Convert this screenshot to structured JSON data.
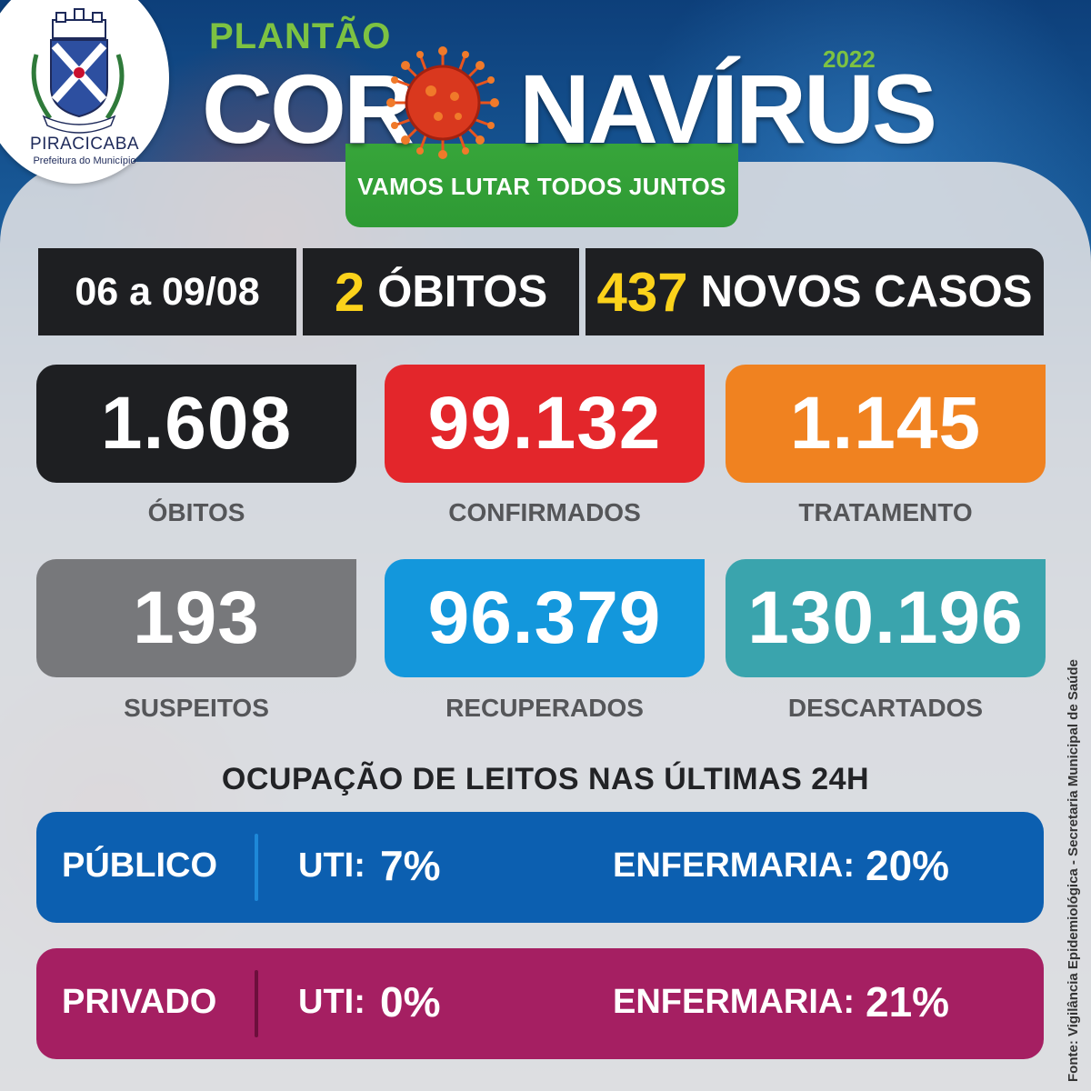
{
  "header": {
    "city": "PIRACICABA",
    "city_subtitle": "Prefeitura do Município",
    "kicker": "PLANTÃO",
    "title_left": "COR",
    "title_right": "NAVÍRUS",
    "year": "2022",
    "slogan": "VAMOS LUTAR TODOS JUNTOS"
  },
  "period_bar": {
    "period": "06 a 09/08",
    "deaths_value": "2",
    "deaths_label": "ÓBITOS",
    "new_cases_value": "437",
    "new_cases_label": "NOVOS CASOS"
  },
  "stats": [
    {
      "value": "1.608",
      "label": "ÓBITOS",
      "color": "#1e1f22"
    },
    {
      "value": "99.132",
      "label": "CONFIRMADOS",
      "color": "#e3262b"
    },
    {
      "value": "1.145",
      "label": "TRATAMENTO",
      "color": "#f08220"
    },
    {
      "value": "193",
      "label": "SUSPEITOS",
      "color": "#77787b"
    },
    {
      "value": "96.379",
      "label": "RECUPERADOS",
      "color": "#1397dc"
    },
    {
      "value": "130.196",
      "label": "DESCARTADOS",
      "color": "#3aa4ad"
    }
  ],
  "occupancy": {
    "title": "OCUPAÇÃO DE LEITOS NAS ÚLTIMAS 24H",
    "rows": [
      {
        "name": "PÚBLICO",
        "uti_label": "UTI:",
        "uti_value": "7%",
        "enf_label": "ENFERMARIA:",
        "enf_value": "20%",
        "color": "#0c5fb0",
        "sep_color": "#1e88d8"
      },
      {
        "name": "PRIVADO",
        "uti_label": "UTI:",
        "uti_value": "0%",
        "enf_label": "ENFERMARIA:",
        "enf_value": "21%",
        "color": "#a51f62",
        "sep_color": "#6d0f3c"
      }
    ]
  },
  "source": "Fonte: Vigilância Epidemiológica - Secretaria Municipal de Saúde"
}
